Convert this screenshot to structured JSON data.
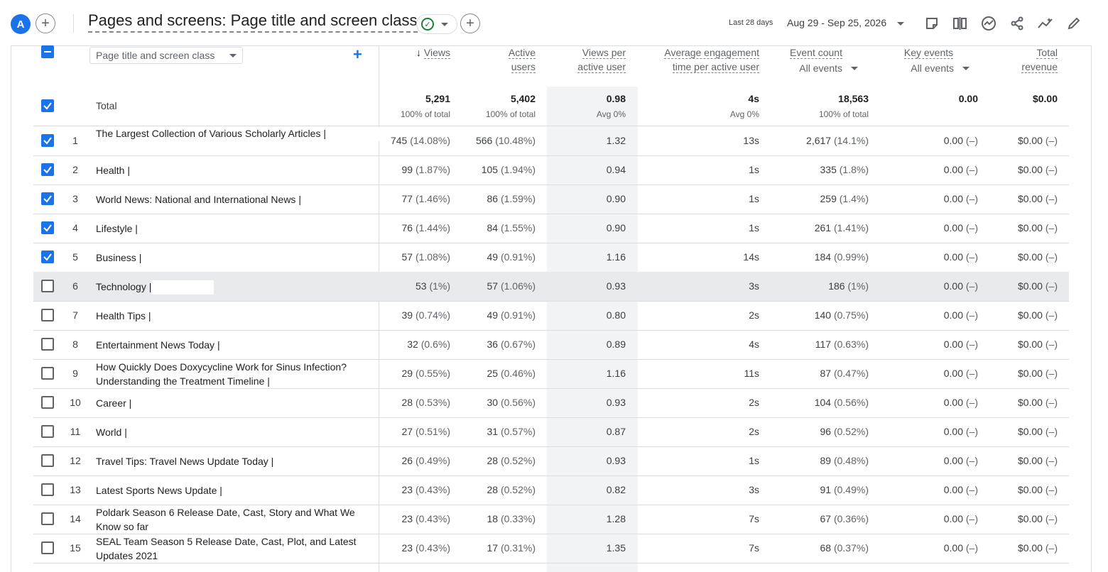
{
  "header": {
    "avatar_letter": "A",
    "title": "Pages and screens: Page title and screen class",
    "date_label": "Last 28 days",
    "date_range": "Aug 29 - Sep 25, 2026"
  },
  "table": {
    "dimension_select": "Page title and screen class",
    "columns": [
      {
        "line1": "Views",
        "line2": "",
        "sorted": true
      },
      {
        "line1": "Active",
        "line2": "users"
      },
      {
        "line1": "Views per",
        "line2": "active user"
      },
      {
        "line1": "Average engagement",
        "line2": "time per active user"
      },
      {
        "line1": "Event count",
        "line2": "All events"
      },
      {
        "line1": "Key events",
        "line2": "All events"
      },
      {
        "line1": "Total",
        "line2": "revenue"
      }
    ],
    "totals": {
      "label": "Total",
      "values": [
        "5,291",
        "5,402",
        "0.98",
        "4s",
        "18,563",
        "0.00",
        "$0.00"
      ],
      "subs": [
        "100% of total",
        "100% of total",
        "Avg 0%",
        "Avg 0%",
        "100% of total",
        "",
        ""
      ]
    },
    "rows": [
      {
        "n": "1",
        "title1": "The Largest Collection of Various Scholarly Articles |",
        "title2": "",
        "checked": true,
        "v": [
          "745",
          "566",
          "1.32",
          "13s",
          "2,617",
          "0.00",
          "$0.00"
        ],
        "p": [
          "(14.08%)",
          "(10.48%)",
          "",
          "",
          "(14.1%)",
          "(–)",
          "(–)"
        ]
      },
      {
        "n": "2",
        "title1": "Health |",
        "checked": true,
        "v": [
          "99",
          "105",
          "0.94",
          "1s",
          "335",
          "0.00",
          "$0.00"
        ],
        "p": [
          "(1.87%)",
          "(1.94%)",
          "",
          "",
          "(1.8%)",
          "(–)",
          "(–)"
        ]
      },
      {
        "n": "3",
        "title1": "World News: National and International News |",
        "checked": true,
        "v": [
          "77",
          "86",
          "0.90",
          "1s",
          "259",
          "0.00",
          "$0.00"
        ],
        "p": [
          "(1.46%)",
          "(1.59%)",
          "",
          "",
          "(1.4%)",
          "(–)",
          "(–)"
        ]
      },
      {
        "n": "4",
        "title1": "Lifestyle |",
        "checked": true,
        "v": [
          "76",
          "84",
          "0.90",
          "1s",
          "261",
          "0.00",
          "$0.00"
        ],
        "p": [
          "(1.44%)",
          "(1.55%)",
          "",
          "",
          "(1.41%)",
          "(–)",
          "(–)"
        ]
      },
      {
        "n": "5",
        "title1": "Business |",
        "checked": true,
        "v": [
          "57",
          "49",
          "1.16",
          "14s",
          "184",
          "0.00",
          "$0.00"
        ],
        "p": [
          "(1.08%)",
          "(0.91%)",
          "",
          "",
          "(0.99%)",
          "(–)",
          "(–)"
        ]
      },
      {
        "n": "6",
        "title1": "Technology |",
        "checked": false,
        "v": [
          "53",
          "57",
          "0.93",
          "3s",
          "186",
          "0.00",
          "$0.00"
        ],
        "p": [
          "(1%)",
          "(1.06%)",
          "",
          "",
          "(1%)",
          "(–)",
          "(–)"
        ]
      },
      {
        "n": "7",
        "title1": "Health Tips |",
        "checked": false,
        "v": [
          "39",
          "49",
          "0.80",
          "2s",
          "140",
          "0.00",
          "$0.00"
        ],
        "p": [
          "(0.74%)",
          "(0.91%)",
          "",
          "",
          "(0.75%)",
          "(–)",
          "(–)"
        ]
      },
      {
        "n": "8",
        "title1": "Entertainment News Today |",
        "checked": false,
        "v": [
          "32",
          "36",
          "0.89",
          "4s",
          "117",
          "0.00",
          "$0.00"
        ],
        "p": [
          "(0.6%)",
          "(0.67%)",
          "",
          "",
          "(0.63%)",
          "(–)",
          "(–)"
        ]
      },
      {
        "n": "9",
        "title1": "How Quickly Does Doxycycline Work for Sinus Infection?",
        "title2": "Understanding the Treatment Timeline |",
        "checked": false,
        "v": [
          "29",
          "25",
          "1.16",
          "11s",
          "87",
          "0.00",
          "$0.00"
        ],
        "p": [
          "(0.55%)",
          "(0.46%)",
          "",
          "",
          "(0.47%)",
          "(–)",
          "(–)"
        ]
      },
      {
        "n": "10",
        "title1": "Career |",
        "checked": false,
        "v": [
          "28",
          "30",
          "0.93",
          "2s",
          "104",
          "0.00",
          "$0.00"
        ],
        "p": [
          "(0.53%)",
          "(0.56%)",
          "",
          "",
          "(0.56%)",
          "(–)",
          "(–)"
        ]
      },
      {
        "n": "11",
        "title1": "World |",
        "checked": false,
        "v": [
          "27",
          "31",
          "0.87",
          "2s",
          "96",
          "0.00",
          "$0.00"
        ],
        "p": [
          "(0.51%)",
          "(0.57%)",
          "",
          "",
          "(0.52%)",
          "(–)",
          "(–)"
        ]
      },
      {
        "n": "12",
        "title1": "Travel Tips: Travel News Update Today |",
        "checked": false,
        "v": [
          "26",
          "28",
          "0.93",
          "1s",
          "89",
          "0.00",
          "$0.00"
        ],
        "p": [
          "(0.49%)",
          "(0.52%)",
          "",
          "",
          "(0.48%)",
          "(–)",
          "(–)"
        ]
      },
      {
        "n": "13",
        "title1": "Latest Sports News Update |",
        "checked": false,
        "v": [
          "23",
          "28",
          "0.82",
          "3s",
          "91",
          "0.00",
          "$0.00"
        ],
        "p": [
          "(0.43%)",
          "(0.52%)",
          "",
          "",
          "(0.49%)",
          "(–)",
          "(–)"
        ]
      },
      {
        "n": "14",
        "title1": "Poldark Season 6 Release Date, Cast, Story and What We",
        "title2": "Know so far",
        "checked": false,
        "v": [
          "23",
          "18",
          "1.28",
          "7s",
          "67",
          "0.00",
          "$0.00"
        ],
        "p": [
          "(0.43%)",
          "(0.33%)",
          "",
          "",
          "(0.36%)",
          "(–)",
          "(–)"
        ]
      },
      {
        "n": "15",
        "title1": "SEAL Team Season 5 Release Date, Cast, Plot, and Latest",
        "title2": "Updates 2021",
        "checked": false,
        "v": [
          "23",
          "17",
          "1.35",
          "7s",
          "68",
          "0.00",
          "$0.00"
        ],
        "p": [
          "(0.43%)",
          "(0.31%)",
          "",
          "",
          "(0.37%)",
          "(–)",
          "(–)"
        ]
      }
    ]
  },
  "colors": {
    "accent": "#1a73e8",
    "success": "#188038",
    "highlight_col": "#f1f3f4",
    "hover_row": "#e8eaed"
  },
  "icons": [
    "add-icon",
    "check-circle-icon",
    "chevron-down-icon",
    "sort-down-arrow-icon",
    "customize-report-icon",
    "compare-icon",
    "insights-icon",
    "share-icon",
    "trend-icon",
    "edit-icon"
  ]
}
